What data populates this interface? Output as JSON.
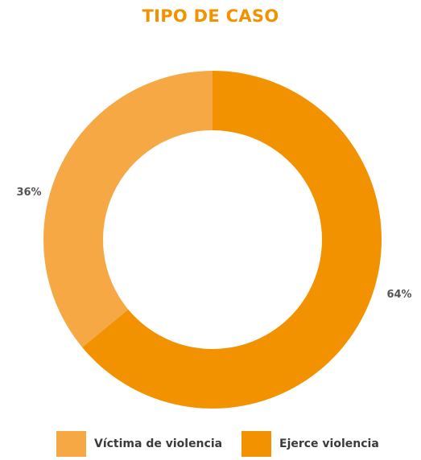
{
  "chart_data": {
    "type": "pie",
    "donut": true,
    "title": "TIPO DE CASO",
    "categories": [
      "Víctima de violencia",
      "Ejerce violencia"
    ],
    "values": [
      36,
      64
    ],
    "value_labels": [
      "36%",
      "64%"
    ],
    "colors": [
      "#f5a843",
      "#f29200"
    ],
    "legend_position": "bottom"
  },
  "colors": {
    "title": "#f29200",
    "label": "#555555"
  }
}
